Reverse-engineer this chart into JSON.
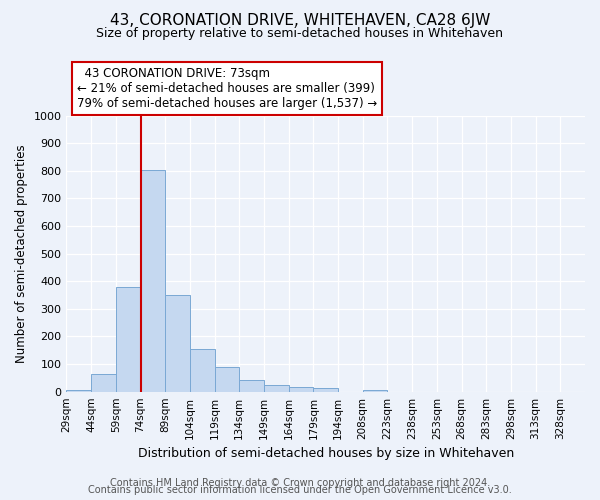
{
  "title": "43, CORONATION DRIVE, WHITEHAVEN, CA28 6JW",
  "subtitle": "Size of property relative to semi-detached houses in Whitehaven",
  "xlabel": "Distribution of semi-detached houses by size in Whitehaven",
  "ylabel": "Number of semi-detached properties",
  "bin_labels": [
    "29sqm",
    "44sqm",
    "59sqm",
    "74sqm",
    "89sqm",
    "104sqm",
    "119sqm",
    "134sqm",
    "149sqm",
    "164sqm",
    "179sqm",
    "194sqm",
    "208sqm",
    "223sqm",
    "238sqm",
    "253sqm",
    "268sqm",
    "283sqm",
    "298sqm",
    "313sqm",
    "328sqm"
  ],
  "bar_values": [
    7,
    65,
    380,
    805,
    350,
    155,
    88,
    42,
    25,
    17,
    15,
    0,
    5,
    0,
    0,
    0,
    0,
    0,
    0,
    0,
    0
  ],
  "bar_color": "#c5d8f0",
  "bar_edge_color": "#7aa8d4",
  "pct_smaller": 21,
  "n_smaller": 399,
  "pct_larger": 79,
  "n_larger": 1537,
  "vline_x_index": 3,
  "vline_color": "#cc0000",
  "annotation_box_facecolor": "#ffffff",
  "annotation_box_edgecolor": "#cc0000",
  "ylim": [
    0,
    1000
  ],
  "yticks": [
    0,
    100,
    200,
    300,
    400,
    500,
    600,
    700,
    800,
    900,
    1000
  ],
  "footer1": "Contains HM Land Registry data © Crown copyright and database right 2024.",
  "footer2": "Contains public sector information licensed under the Open Government Licence v3.0.",
  "bg_color": "#edf2fa",
  "grid_color": "#ffffff",
  "title_fontsize": 11,
  "subtitle_fontsize": 9,
  "footer_fontsize": 7
}
